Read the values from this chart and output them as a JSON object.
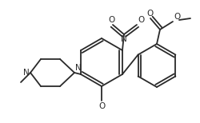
{
  "bg_color": "#ffffff",
  "line_color": "#2a2a2a",
  "line_width": 1.3,
  "figsize": [
    2.5,
    1.54
  ],
  "dpi": 100,
  "xlim": [
    0,
    250
  ],
  "ylim": [
    0,
    154
  ]
}
